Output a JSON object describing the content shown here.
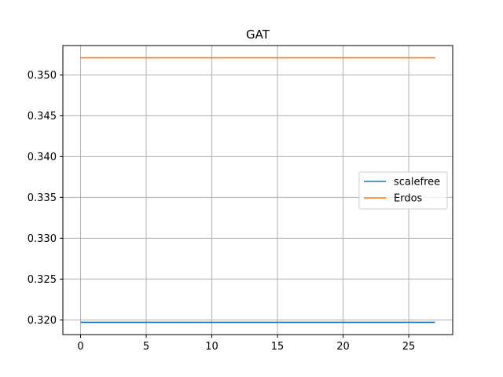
{
  "chart_data": {
    "type": "line",
    "title": "GAT",
    "xlabel": "",
    "ylabel": "",
    "xlim": [
      -1.35,
      28.35
    ],
    "ylim": [
      0.3182,
      0.3536
    ],
    "xticks": [
      0,
      5,
      10,
      15,
      20,
      25
    ],
    "xtick_labels": [
      "0",
      "5",
      "10",
      "15",
      "20",
      "25"
    ],
    "yticks": [
      0.32,
      0.325,
      0.33,
      0.335,
      0.34,
      0.345,
      0.35
    ],
    "ytick_labels": [
      "0.320",
      "0.325",
      "0.330",
      "0.335",
      "0.340",
      "0.345",
      "0.350"
    ],
    "grid": true,
    "legend_position": "center-right",
    "series": [
      {
        "name": "scalefree",
        "color": "#1f77b4",
        "x": [
          0,
          1,
          2,
          3,
          4,
          5,
          6,
          7,
          8,
          9,
          10,
          11,
          12,
          13,
          14,
          15,
          16,
          17,
          18,
          19,
          20,
          21,
          22,
          23,
          24,
          25,
          26,
          27
        ],
        "y": [
          0.3197,
          0.3197,
          0.3197,
          0.3197,
          0.3197,
          0.3197,
          0.3197,
          0.3197,
          0.3197,
          0.3197,
          0.3197,
          0.3197,
          0.3197,
          0.3197,
          0.3197,
          0.3197,
          0.3197,
          0.3197,
          0.3197,
          0.3197,
          0.3197,
          0.3197,
          0.3197,
          0.3197,
          0.3197,
          0.3197,
          0.3197,
          0.3197
        ]
      },
      {
        "name": "Erdos",
        "color": "#ff7f0e",
        "x": [
          0,
          1,
          2,
          3,
          4,
          5,
          6,
          7,
          8,
          9,
          10,
          11,
          12,
          13,
          14,
          15,
          16,
          17,
          18,
          19,
          20,
          21,
          22,
          23,
          24,
          25,
          26,
          27
        ],
        "y": [
          0.3521,
          0.3521,
          0.3521,
          0.3521,
          0.3521,
          0.3521,
          0.3521,
          0.3521,
          0.3521,
          0.3521,
          0.3521,
          0.3521,
          0.3521,
          0.3521,
          0.3521,
          0.3521,
          0.3521,
          0.3521,
          0.3521,
          0.3521,
          0.3521,
          0.3521,
          0.3521,
          0.3521,
          0.3521,
          0.3521,
          0.3521,
          0.3521
        ]
      }
    ]
  }
}
